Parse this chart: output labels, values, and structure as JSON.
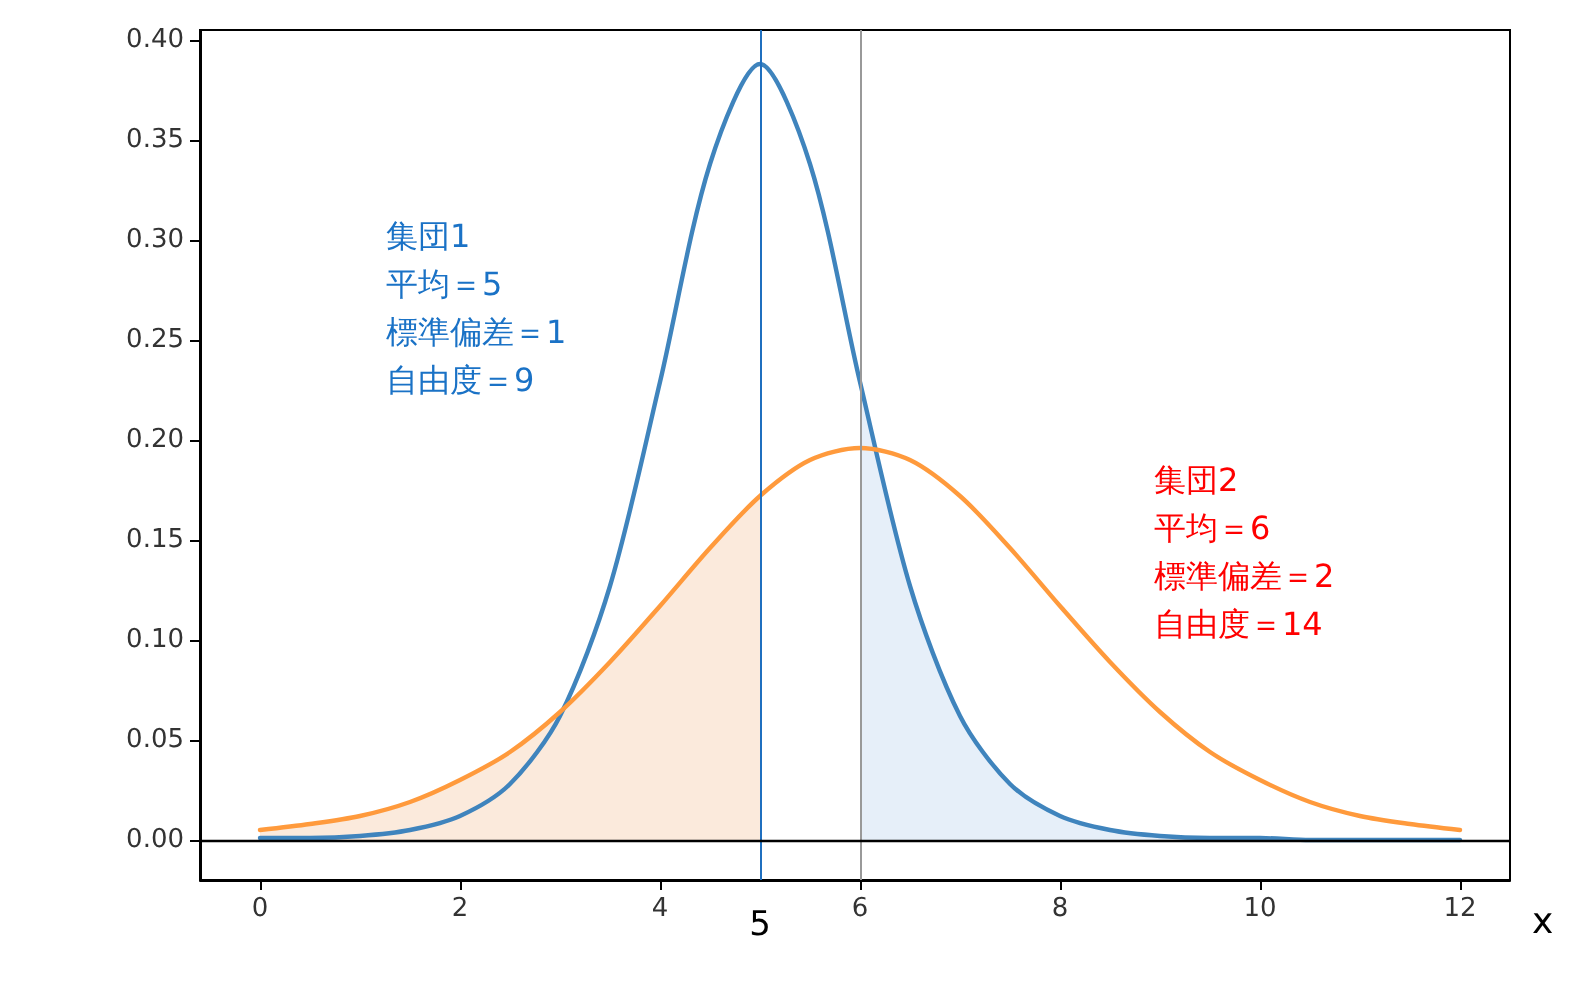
{
  "chart_data": {
    "type": "line",
    "xlabel": "x",
    "x": [
      0,
      0.5,
      1,
      1.5,
      2,
      2.5,
      3,
      3.5,
      4,
      4.5,
      5,
      5.5,
      6,
      6.5,
      7,
      7.5,
      8,
      8.5,
      9,
      9.5,
      10,
      10.5,
      11,
      11.5,
      12
    ],
    "series": [
      {
        "type": "area",
        "color": "#fbeadc",
        "x": [
          0,
          0.5,
          1,
          1.5,
          2,
          2.5,
          3,
          3.5,
          4,
          4.5,
          5
        ],
        "values": [
          0.005,
          0.008,
          0.012,
          0.019,
          0.03,
          0.044,
          0.064,
          0.089,
          0.117,
          0.146,
          0.172
        ]
      },
      {
        "type": "area",
        "color": "#e6eff9",
        "x": [
          6,
          6.5,
          7,
          7.5,
          8,
          8.5,
          9,
          9.5,
          10,
          10.5,
          11,
          11.5,
          12
        ],
        "values": [
          0.229,
          0.127,
          0.062,
          0.028,
          0.012,
          0.005,
          0.002,
          0.001,
          0.001,
          0,
          0,
          0,
          0
        ]
      },
      {
        "color": "#3f84bd",
        "values": [
          0.001,
          0.001,
          0.002,
          0.005,
          0.012,
          0.028,
          0.062,
          0.127,
          0.229,
          0.338,
          0.388,
          0.338,
          0.229,
          0.127,
          0.062,
          0.028,
          0.012,
          0.005,
          0.002,
          0.001,
          0.001,
          0,
          0,
          0,
          0
        ]
      },
      {
        "color": "#ff9a3c",
        "values": [
          0.005,
          0.008,
          0.012,
          0.019,
          0.03,
          0.044,
          0.064,
          0.089,
          0.117,
          0.146,
          0.172,
          0.19,
          0.196,
          0.19,
          0.172,
          0.146,
          0.117,
          0.089,
          0.064,
          0.044,
          0.03,
          0.019,
          0.012,
          0.008,
          0.005
        ]
      }
    ],
    "xlim": [
      -0.6,
      12.5
    ],
    "xticks": [
      0,
      2,
      4,
      6,
      8,
      10,
      12
    ],
    "ylim": [
      -0.02,
      0.405
    ],
    "yticks": [
      {
        "value": 0,
        "label": "0.00"
      },
      {
        "value": 0.05,
        "label": "0.05"
      },
      {
        "value": 0.1,
        "label": "0.10"
      },
      {
        "value": 0.15,
        "label": "0.15"
      },
      {
        "value": 0.2,
        "label": "0.20"
      },
      {
        "value": 0.25,
        "label": "0.25"
      },
      {
        "value": 0.3,
        "label": "0.30"
      },
      {
        "value": 0.35,
        "label": "0.35"
      },
      {
        "value": 0.4,
        "label": "0.40"
      }
    ],
    "ref_lines": [
      {
        "axis": "x",
        "value": 5,
        "label": "5",
        "color": "#1f6fbf"
      },
      {
        "axis": "x",
        "value": 6,
        "color": "#999999"
      },
      {
        "axis": "y",
        "value": 0,
        "color": "#000000"
      }
    ],
    "annotations": [
      "集団1\n平均＝5\n標準偏差＝1\n自由度＝9",
      "集団2\n平均＝6\n標準偏差＝2\n自由度＝14"
    ],
    "grid": false,
    "marker": "none",
    "line_style": "solid"
  }
}
